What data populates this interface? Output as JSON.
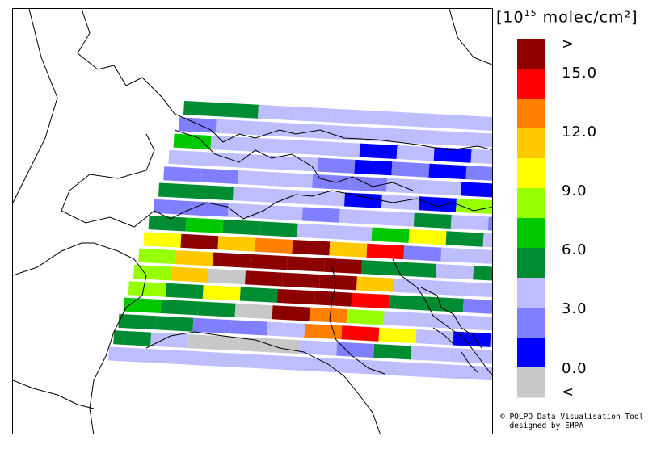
{
  "legend": {
    "title_prefix": "[10",
    "title_exponent": "15",
    "title_suffix": " molec/cm²]",
    "colors": [
      "#c8c8c8",
      "#0000ff",
      "#7f7fff",
      "#bebeff",
      "#008c32",
      "#00c800",
      "#96ff00",
      "#ffff00",
      "#ffc800",
      "#ff7f00",
      "#ff0000",
      "#8c0000"
    ],
    "labels": [
      ">",
      "15.0",
      "12.0",
      "9.0",
      "6.0",
      "3.0",
      "0.0",
      "<"
    ]
  },
  "credit": {
    "line1": "© POLPO Data Visualisation Tool",
    "line2": "  designed by EMPA"
  },
  "swath": {
    "rows": [
      [
        4,
        4,
        3,
        3,
        3,
        3,
        3,
        3,
        3,
        3,
        3,
        3
      ],
      [
        2,
        3,
        3,
        3,
        3,
        3,
        3,
        3,
        3,
        3,
        3,
        3
      ],
      [
        5,
        3,
        3,
        3,
        3,
        1,
        3,
        1,
        3,
        1,
        4,
        4
      ],
      [
        3,
        3,
        3,
        3,
        2,
        1,
        2,
        1,
        2,
        3,
        4,
        3
      ],
      [
        2,
        2,
        3,
        3,
        2,
        2,
        3,
        3,
        1,
        3,
        1,
        3
      ],
      [
        4,
        4,
        3,
        3,
        3,
        1,
        3,
        1,
        6,
        3,
        5,
        3
      ],
      [
        2,
        2,
        3,
        3,
        2,
        3,
        3,
        4,
        3,
        2,
        3,
        2
      ],
      [
        4,
        5,
        4,
        4,
        3,
        3,
        5,
        7,
        4,
        3,
        3,
        2
      ],
      [
        7,
        11,
        8,
        9,
        11,
        8,
        10,
        2,
        3,
        3,
        3,
        3
      ],
      [
        6,
        8,
        11,
        11,
        11,
        11,
        4,
        4,
        3,
        4,
        3,
        3
      ],
      [
        6,
        8,
        0,
        11,
        11,
        11,
        8,
        3,
        3,
        3,
        3,
        3
      ],
      [
        6,
        4,
        7,
        4,
        11,
        11,
        10,
        4,
        4,
        2,
        3,
        4
      ],
      [
        5,
        4,
        4,
        0,
        11,
        9,
        6,
        3,
        3,
        3,
        2,
        3
      ],
      [
        4,
        4,
        2,
        2,
        3,
        9,
        10,
        7,
        3,
        1,
        3,
        3
      ],
      [
        4,
        3,
        0,
        0,
        0,
        3,
        2,
        4,
        3,
        3,
        3,
        3
      ],
      [
        3,
        3,
        3,
        3,
        3,
        3,
        3,
        3,
        3,
        3,
        3,
        3
      ]
    ]
  }
}
